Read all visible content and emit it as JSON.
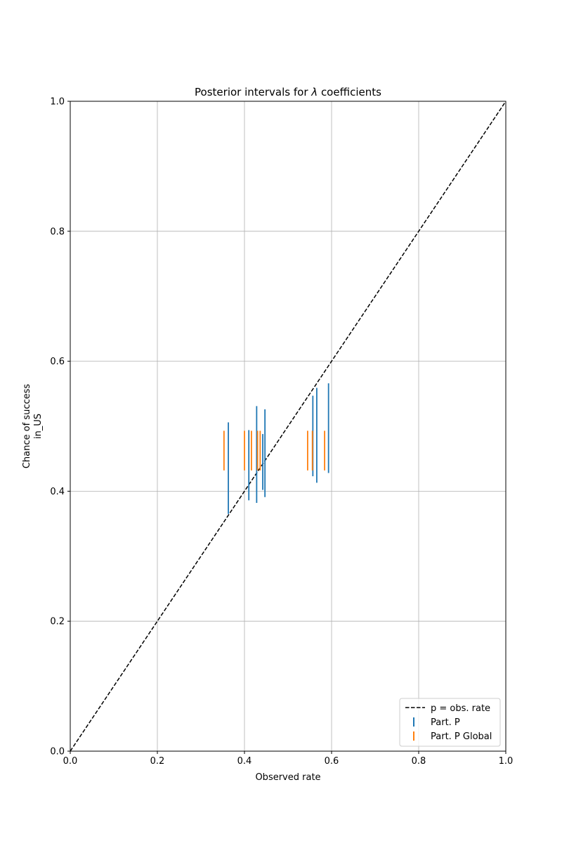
{
  "chart_data": {
    "type": "errorbar",
    "title_prefix": "Posterior intervals for ",
    "title_symbol": "λ",
    "title_suffix": " coefficients",
    "xlabel": "Observed rate",
    "ylabel_lines": [
      "Chance of success",
      "in_US"
    ],
    "xlim": [
      0.0,
      1.0
    ],
    "ylim": [
      0.0,
      1.0
    ],
    "xticks": [
      0.0,
      0.2,
      0.4,
      0.6,
      0.8,
      1.0
    ],
    "yticks": [
      0.0,
      0.2,
      0.4,
      0.6,
      0.8,
      1.0
    ],
    "tick_labels": [
      "0.0",
      "0.2",
      "0.4",
      "0.6",
      "0.8",
      "1.0"
    ],
    "grid": true,
    "legend_position": "lower-right",
    "reference_line": {
      "name": "p = obs. rate",
      "points": [
        [
          0.0,
          0.0
        ],
        [
          1.0,
          1.0
        ]
      ],
      "style": "dashed",
      "color": "#000000"
    },
    "series": [
      {
        "name": "Part. P",
        "color": "#1f77b4",
        "intervals": [
          {
            "x": 0.363,
            "low": 0.365,
            "high": 0.506
          },
          {
            "x": 0.41,
            "low": 0.386,
            "high": 0.494
          },
          {
            "x": 0.428,
            "low": 0.382,
            "high": 0.531
          },
          {
            "x": 0.442,
            "low": 0.402,
            "high": 0.488
          },
          {
            "x": 0.447,
            "low": 0.391,
            "high": 0.526
          },
          {
            "x": 0.557,
            "low": 0.423,
            "high": 0.547
          },
          {
            "x": 0.566,
            "low": 0.413,
            "high": 0.559
          },
          {
            "x": 0.593,
            "low": 0.428,
            "high": 0.566
          }
        ]
      },
      {
        "name": "Part. P Global",
        "color": "#ff7f0e",
        "intervals": [
          {
            "x": 0.353,
            "low": 0.432,
            "high": 0.493
          },
          {
            "x": 0.4,
            "low": 0.432,
            "high": 0.493
          },
          {
            "x": 0.416,
            "low": 0.432,
            "high": 0.493
          },
          {
            "x": 0.43,
            "low": 0.432,
            "high": 0.493
          },
          {
            "x": 0.436,
            "low": 0.432,
            "high": 0.493
          },
          {
            "x": 0.545,
            "low": 0.432,
            "high": 0.493
          },
          {
            "x": 0.556,
            "low": 0.432,
            "high": 0.493
          },
          {
            "x": 0.584,
            "low": 0.432,
            "high": 0.493
          }
        ]
      }
    ]
  }
}
